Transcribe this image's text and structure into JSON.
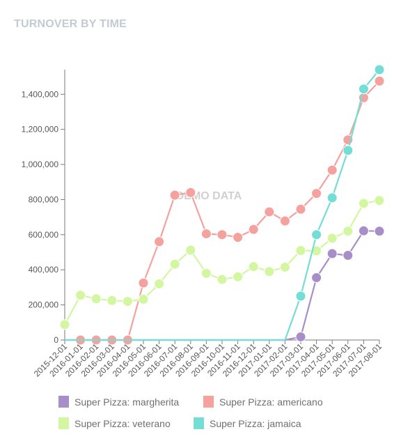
{
  "title": "TURNOVER BY TIME",
  "watermark": "DEMO DATA",
  "colors": {
    "axis": "#7a7a7a",
    "tick_text": "#555555",
    "margherita": "#a78ec9",
    "americano": "#f5a19e",
    "veterano": "#d2f7a0",
    "jamaica": "#74ddd6"
  },
  "chart_data": {
    "type": "line",
    "title": "TURNOVER BY TIME",
    "xlabel": "",
    "ylabel": "",
    "ylim": [
      0,
      1540000
    ],
    "yticks": [
      0,
      200000,
      400000,
      600000,
      800000,
      1000000,
      1200000,
      1400000
    ],
    "ytick_labels": [
      "0",
      "200,000",
      "400,000",
      "600,000",
      "800,000",
      "1,000,000",
      "1,200,000",
      "1,400,000"
    ],
    "grid": false,
    "legend_position": "bottom",
    "categories": [
      "2015-12-01",
      "2016-01-01",
      "2016-02-01",
      "2016-03-01",
      "2016-04-01",
      "2016-05-01",
      "2016-06-01",
      "2016-07-01",
      "2016-08-01",
      "2016-09-01",
      "2016-10-01",
      "2016-11-01",
      "2016-12-01",
      "2017-01-01",
      "2017-02-01",
      "2017-03-01",
      "2017-04-01",
      "2017-05-01",
      "2017-06-01",
      "2017-07-01",
      "2017-08-01"
    ],
    "series": [
      {
        "name": "Super Pizza: margherita",
        "color": "#a78ec9",
        "start": 0,
        "marker_start": 15,
        "values": [
          0,
          0,
          0,
          0,
          0,
          0,
          0,
          0,
          0,
          0,
          0,
          0,
          0,
          0,
          0,
          18000,
          355000,
          492000,
          482000,
          622000,
          620000
        ]
      },
      {
        "name": "Super Pizza: americano",
        "color": "#f5a19e",
        "start": 1,
        "marker_start": 1,
        "values": [
          null,
          0,
          0,
          0,
          0,
          325000,
          560000,
          825000,
          840000,
          605000,
          600000,
          585000,
          630000,
          730000,
          678000,
          745000,
          835000,
          968000,
          1140000,
          1380000,
          1475000
        ]
      },
      {
        "name": "Super Pizza: veterano",
        "color": "#d2f7a0",
        "start": 0,
        "marker_start": 0,
        "values": [
          88000,
          255000,
          235000,
          225000,
          220000,
          232000,
          320000,
          432000,
          512000,
          380000,
          345000,
          360000,
          418000,
          390000,
          415000,
          510000,
          508000,
          580000,
          620000,
          778000,
          795000
        ]
      },
      {
        "name": "Super Pizza: jamaica",
        "color": "#74ddd6",
        "start": 0,
        "marker_start": 15,
        "values": [
          0,
          0,
          0,
          0,
          0,
          0,
          0,
          0,
          0,
          0,
          0,
          0,
          0,
          0,
          0,
          250000,
          600000,
          810000,
          1080000,
          1430000,
          1540000
        ]
      }
    ]
  },
  "legend": [
    {
      "label": "Super Pizza: margherita",
      "color": "#a78ec9"
    },
    {
      "label": "Super Pizza: americano",
      "color": "#f5a19e"
    },
    {
      "label": "Super Pizza: veterano",
      "color": "#d2f7a0"
    },
    {
      "label": "Super Pizza: jamaica",
      "color": "#74ddd6"
    }
  ]
}
